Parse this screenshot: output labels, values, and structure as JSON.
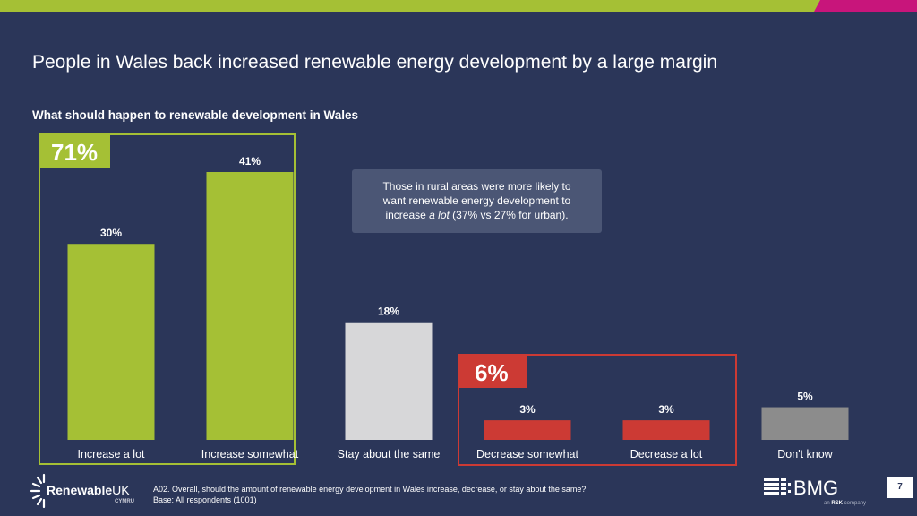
{
  "slide": {
    "title": "People in Wales back increased renewable energy development by a large margin",
    "subtitle": "What should happen to renewable development in Wales",
    "callout": {
      "line1": "Those in rural areas were more likely to",
      "line2": "want renewable energy development to",
      "line3_pre": "increase ",
      "line3_em": "a lot",
      "line3_post": " (37% vs 27% for urban)."
    },
    "footer": {
      "question": "A02. Overall, should the amount of renewable energy development in Wales increase, decrease, or stay about the same?",
      "base": "Base: All respondents (1001)"
    },
    "page_number": "7",
    "logos": {
      "left": {
        "name": "RenewableUK",
        "bold": "Renewable",
        "light": "UK",
        "sub": "CYMRU"
      },
      "right": {
        "name": "BMG",
        "sub_pre": "an ",
        "sub_bold": "RSK",
        "sub_post": " company"
      }
    }
  },
  "colors": {
    "background": "#2b3659",
    "green": "#a5c035",
    "red": "#cc3a34",
    "light_grey": "#d7d7d9",
    "dark_grey": "#8c8c8c",
    "magenta": "#c8157b"
  },
  "chart_data": {
    "type": "bar",
    "title": "What should happen to renewable development in Wales",
    "xlabel": "",
    "ylabel": "",
    "ylim": [
      0,
      45
    ],
    "grid": false,
    "categories": [
      "Increase a lot",
      "Increase somewhat",
      "Stay about the same",
      "Decrease somewhat",
      "Decrease a lot",
      "Don't know"
    ],
    "values": [
      30,
      41,
      18,
      3,
      3,
      5
    ],
    "value_labels": [
      "30%",
      "41%",
      "18%",
      "3%",
      "3%",
      "5%"
    ],
    "bar_colors": [
      "#a5c035",
      "#a5c035",
      "#d7d7d9",
      "#cc3a34",
      "#cc3a34",
      "#8c8c8c"
    ],
    "groups": [
      {
        "label": "71%",
        "members": [
          "Increase a lot",
          "Increase somewhat"
        ],
        "color": "#a5c035"
      },
      {
        "label": "6%",
        "members": [
          "Decrease somewhat",
          "Decrease a lot"
        ],
        "color": "#cc3a34"
      }
    ]
  }
}
